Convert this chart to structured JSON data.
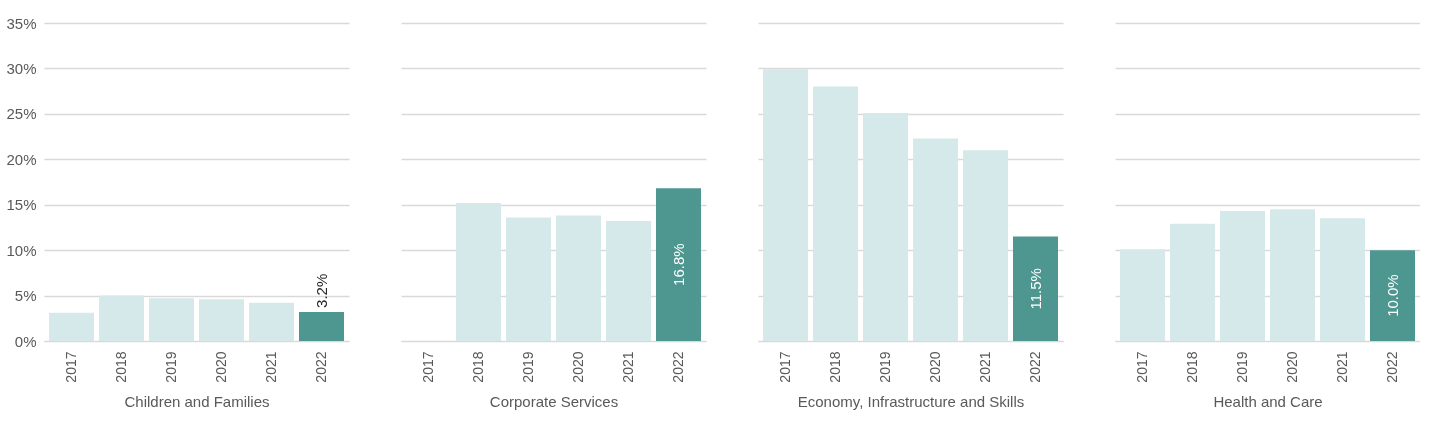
{
  "chart_data": [
    {
      "type": "bar",
      "xlabel": "Children and Families",
      "categories": [
        "2017",
        "2018",
        "2019",
        "2020",
        "2021",
        "2022"
      ],
      "values": [
        3.1,
        5.0,
        4.7,
        4.6,
        4.2,
        3.2
      ],
      "colors": [
        "#d6e9ea",
        "#d6e9ea",
        "#d6e9ea",
        "#d6e9ea",
        "#d6e9ea",
        "#4d9790"
      ],
      "value_labels": [
        null,
        null,
        null,
        null,
        null,
        "3.2%"
      ],
      "ylim": [
        0,
        35
      ],
      "yticks": [
        {
          "value": 0,
          "label": "0%"
        },
        {
          "value": 5,
          "label": "5%"
        },
        {
          "value": 10,
          "label": "10%"
        },
        {
          "value": 15,
          "label": "15%"
        },
        {
          "value": 20,
          "label": "20%"
        },
        {
          "value": 25,
          "label": "25%"
        },
        {
          "value": 30,
          "label": "30%"
        },
        {
          "value": 35,
          "label": "35%"
        }
      ],
      "grid": "y"
    },
    {
      "type": "bar",
      "xlabel": "Corporate Services",
      "categories": [
        "2017",
        "2018",
        "2019",
        "2020",
        "2021",
        "2022"
      ],
      "values": [
        null,
        15.2,
        13.6,
        13.8,
        13.2,
        16.8
      ],
      "colors": [
        "#d6e9ea",
        "#d6e9ea",
        "#d6e9ea",
        "#d6e9ea",
        "#d6e9ea",
        "#4d9790"
      ],
      "value_labels": [
        null,
        null,
        null,
        null,
        null,
        "16.8%"
      ],
      "ylim": [
        0,
        35
      ],
      "yticks": [
        {
          "value": 0,
          "label": null
        },
        {
          "value": 5,
          "label": null
        },
        {
          "value": 10,
          "label": null
        },
        {
          "value": 15,
          "label": null
        },
        {
          "value": 20,
          "label": null
        },
        {
          "value": 25,
          "label": null
        },
        {
          "value": 30,
          "label": null
        },
        {
          "value": 35,
          "label": null
        }
      ],
      "grid": "y",
      "tick_labels": "x"
    },
    {
      "type": "bar",
      "xlabel": "Economy, Infrastructure and Skills",
      "categories": [
        "2017",
        "2018",
        "2019",
        "2020",
        "2021",
        "2022"
      ],
      "values": [
        29.9,
        28.0,
        25.1,
        22.3,
        21.0,
        11.5
      ],
      "colors": [
        "#d6e9ea",
        "#d6e9ea",
        "#d6e9ea",
        "#d6e9ea",
        "#d6e9ea",
        "#4d9790"
      ],
      "value_labels": [
        null,
        null,
        null,
        null,
        null,
        "11.5%"
      ],
      "ylim": [
        0,
        35
      ],
      "yticks": [
        {
          "value": 0,
          "label": null
        },
        {
          "value": 5,
          "label": null
        },
        {
          "value": 10,
          "label": null
        },
        {
          "value": 15,
          "label": null
        },
        {
          "value": 20,
          "label": null
        },
        {
          "value": 25,
          "label": null
        },
        {
          "value": 30,
          "label": null
        },
        {
          "value": 35,
          "label": null
        }
      ],
      "grid": "y",
      "tick_labels": "x"
    },
    {
      "type": "bar",
      "xlabel": "Health and Care",
      "categories": [
        "2017",
        "2018",
        "2019",
        "2020",
        "2021",
        "2022"
      ],
      "values": [
        10.1,
        12.9,
        14.3,
        14.5,
        13.5,
        10.0
      ],
      "colors": [
        "#d6e9ea",
        "#d6e9ea",
        "#d6e9ea",
        "#d6e9ea",
        "#d6e9ea",
        "#4d9790"
      ],
      "value_labels": [
        null,
        null,
        null,
        null,
        null,
        "10.0%"
      ],
      "ylim": [
        0,
        35
      ],
      "yticks": [
        {
          "value": 0,
          "label": null
        },
        {
          "value": 5,
          "label": null
        },
        {
          "value": 10,
          "label": null
        },
        {
          "value": 15,
          "label": null
        },
        {
          "value": 20,
          "label": null
        },
        {
          "value": 25,
          "label": null
        },
        {
          "value": 30,
          "label": null
        },
        {
          "value": 35,
          "label": null
        }
      ],
      "grid": "y",
      "tick_labels": "x"
    }
  ]
}
